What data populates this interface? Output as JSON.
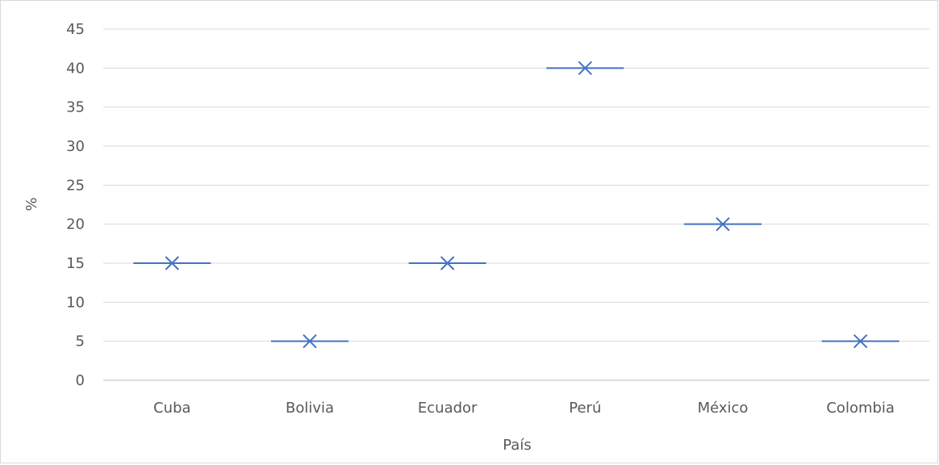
{
  "chart_data": {
    "type": "scatter",
    "title": "",
    "xlabel": "País",
    "ylabel": "%",
    "categories": [
      "Cuba",
      "Bolivia",
      "Ecuador",
      "Perú",
      "México",
      "Colombia"
    ],
    "series": [
      {
        "values": [
          15,
          5,
          15,
          40,
          20,
          5
        ]
      }
    ],
    "ylim": [
      0,
      45
    ],
    "yticks": [
      0,
      5,
      10,
      15,
      20,
      25,
      30,
      35,
      40,
      45
    ],
    "grid": true,
    "legend": "none",
    "marker": "x-with-dash",
    "colors": {
      "series": "#4472c4",
      "grid": "#d9d9d9",
      "text": "#595959",
      "axis": "#bfbfbf"
    }
  }
}
